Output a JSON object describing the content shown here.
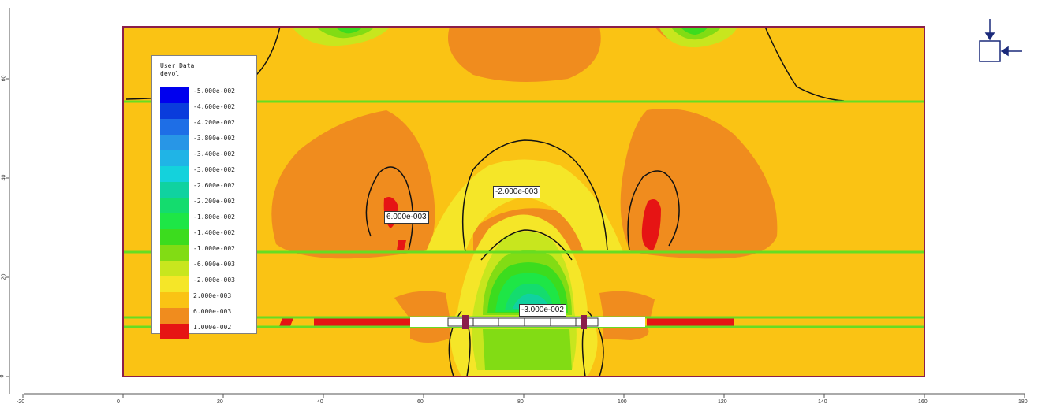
{
  "legend": {
    "title_line1": "User Data",
    "title_line2": "devol",
    "entries": [
      {
        "label": "-5.000e-002",
        "color": "#0000ee"
      },
      {
        "label": "-4.600e-002",
        "color": "#0a3cdc"
      },
      {
        "label": "-4.200e-002",
        "color": "#1e6ee6"
      },
      {
        "label": "-3.800e-002",
        "color": "#2896e6"
      },
      {
        "label": "-3.400e-002",
        "color": "#20b4e6"
      },
      {
        "label": "-3.000e-002",
        "color": "#14d2dc"
      },
      {
        "label": "-2.600e-002",
        "color": "#10d2a0"
      },
      {
        "label": "-2.200e-002",
        "color": "#14dc6e"
      },
      {
        "label": "-1.800e-002",
        "color": "#1ee646"
      },
      {
        "label": "-1.400e-002",
        "color": "#3cdc1e"
      },
      {
        "label": "-1.000e-002",
        "color": "#82dc14"
      },
      {
        "label": "-6.000e-003",
        "color": "#c8e61e"
      },
      {
        "label": "-2.000e-003",
        "color": "#f5e628"
      },
      {
        "label": "2.000e-003",
        "color": "#fac314"
      },
      {
        "label": "6.000e-003",
        "color": "#f08c1e"
      },
      {
        "label": "1.000e-002",
        "color": "#e61414"
      }
    ]
  },
  "contour_labels": [
    {
      "text": "-2.000e-003"
    },
    {
      "text": "6.000e-003"
    },
    {
      "text": "-3.000e-002"
    }
  ],
  "axes": {
    "x_ticks": [
      "-20",
      "0",
      "20",
      "40",
      "60",
      "80",
      "100",
      "120",
      "140",
      "160",
      "180"
    ],
    "y_ticks": [
      "0",
      "20",
      "40",
      "60"
    ]
  },
  "colors": {
    "boundary": "#8b1e4a",
    "layer_line": "#66dd22",
    "contour_line": "#111111",
    "arrow": "#1a2a7a"
  }
}
